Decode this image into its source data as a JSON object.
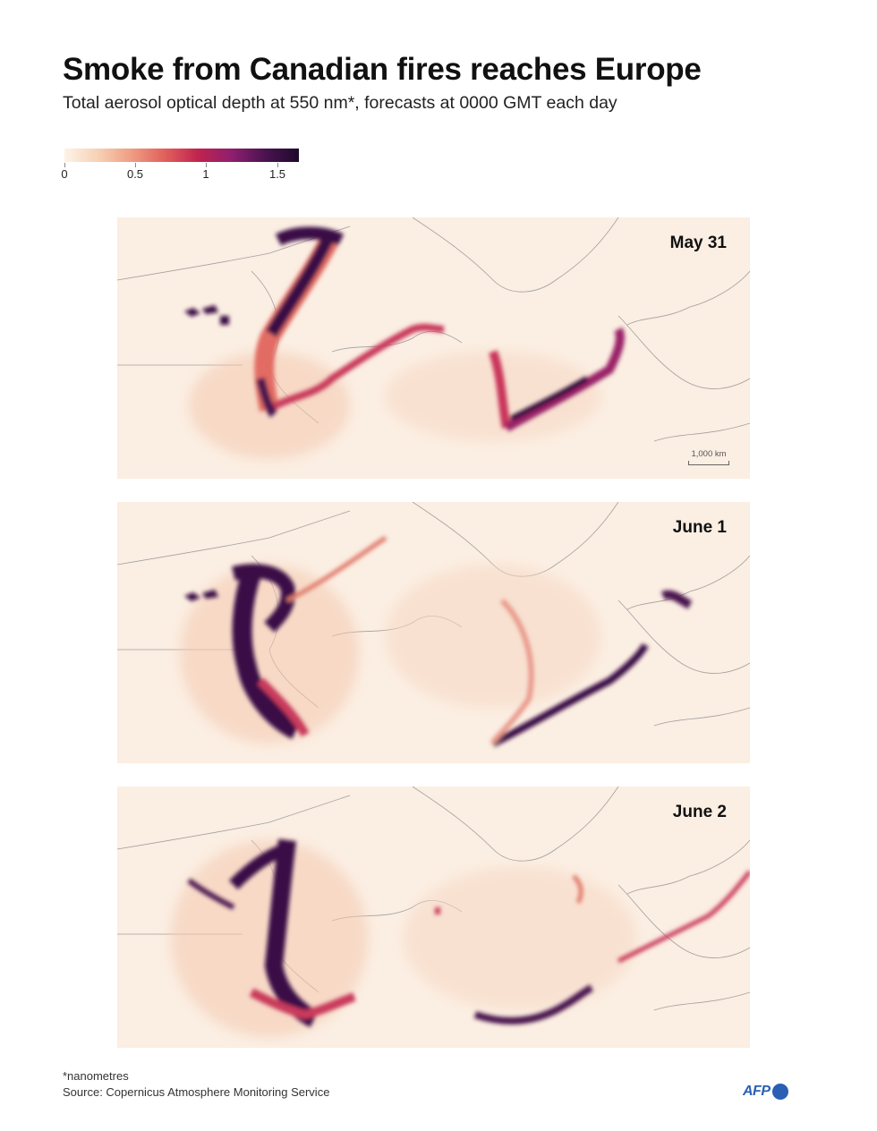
{
  "header": {
    "title": "Smoke from Canadian fires reaches Europe",
    "subtitle": "Total aerosol optical depth at 550 nm*, forecasts at 0000 GMT each day"
  },
  "legend": {
    "ticks": [
      {
        "value": 0,
        "label": "0"
      },
      {
        "value": 0.5,
        "label": "0.5"
      },
      {
        "value": 1,
        "label": "1"
      },
      {
        "value": 1.5,
        "label": "1.5"
      }
    ],
    "max_value": 1.65,
    "colors": [
      "#fdf3e8",
      "#f7d1b5",
      "#ef9d83",
      "#e0605c",
      "#c0234f",
      "#8e1f6e",
      "#4a1350",
      "#1e0a2c"
    ]
  },
  "panels": [
    {
      "date": "May 31",
      "scale_label": "1,000 km"
    },
    {
      "date": "June 1"
    },
    {
      "date": "June 2"
    }
  ],
  "footer": {
    "note": "*nanometres",
    "source": "Source: Copernicus Atmosphere Monitoring Service",
    "logo": "AFP"
  },
  "colors": {
    "map_background": "#fbeee2",
    "coastline": "#9c9c9c",
    "smoke_light": "#efb39a",
    "smoke_mid": "#d9556a",
    "smoke_dark": "#3d1247",
    "afp_blue": "#2b5fb4"
  }
}
